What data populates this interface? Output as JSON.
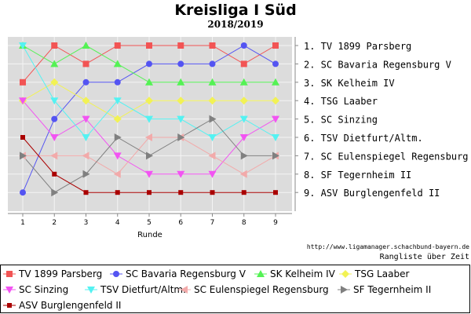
{
  "header": {
    "title": "Kreisliga I Süd",
    "subtitle": "2018/2019"
  },
  "footer": {
    "url": "http://www.ligamanager.schachbund-bayern.de",
    "caption": "Rangliste über Zeit"
  },
  "chart_data": {
    "type": "line",
    "xlabel": "Runde",
    "ylabel": "",
    "x": [
      1,
      2,
      3,
      4,
      5,
      6,
      7,
      8,
      9
    ],
    "ylim": [
      1,
      9
    ],
    "y_inverted": true,
    "grid": true,
    "legend": "bottom",
    "rank_labels": [
      "1. TV 1899 Parsberg",
      "2. SC Bavaria Regensburg V",
      "3. SK Kelheim IV",
      "4. TSG Laaber",
      "5. SC Sinzing",
      "6. TSV Dietfurt/Altm.",
      "7. SC Eulenspiegel Regensburg",
      "8. SF Tegernheim II",
      "9. ASV Burglengenfeld II"
    ],
    "series": [
      {
        "name": "TV 1899 Parsberg",
        "color": "#f25454",
        "marker": "square",
        "values": [
          3,
          1,
          2,
          1,
          1,
          1,
          1,
          2,
          1
        ]
      },
      {
        "name": "SC Bavaria Regensburg V",
        "color": "#5454f2",
        "marker": "circle",
        "values": [
          9,
          5,
          3,
          3,
          2,
          2,
          2,
          1,
          2
        ]
      },
      {
        "name": "SK Kelheim IV",
        "color": "#54f254",
        "marker": "triangle-up",
        "values": [
          1,
          2,
          1,
          2,
          3,
          3,
          3,
          3,
          3
        ]
      },
      {
        "name": "TSG Laaber",
        "color": "#f2f254",
        "marker": "diamond",
        "values": [
          4,
          3,
          4,
          5,
          4,
          4,
          4,
          4,
          4
        ]
      },
      {
        "name": "SC Sinzing",
        "color": "#f254f2",
        "marker": "triangle-down",
        "values": [
          4,
          6,
          5,
          7,
          8,
          8,
          8,
          6,
          5
        ]
      },
      {
        "name": "TSV Dietfurt/Altm.",
        "color": "#54f2f2",
        "marker": "triangle-down",
        "values": [
          1,
          4,
          6,
          4,
          5,
          5,
          6,
          5,
          6
        ]
      },
      {
        "name": "SC Eulenspiegel Regensburg",
        "color": "#f2aaaa",
        "marker": "triangle-left",
        "values": [
          7,
          7,
          7,
          8,
          6,
          6,
          7,
          8,
          7
        ]
      },
      {
        "name": "SF Tegernheim II",
        "color": "#808080",
        "marker": "triangle-right",
        "values": [
          7,
          9,
          8,
          6,
          7,
          6,
          5,
          7,
          7
        ]
      },
      {
        "name": "ASV Burglengenfeld II",
        "color": "#aa0000",
        "marker": "square-small",
        "values": [
          6,
          8,
          9,
          9,
          9,
          9,
          9,
          9,
          9
        ]
      }
    ]
  }
}
